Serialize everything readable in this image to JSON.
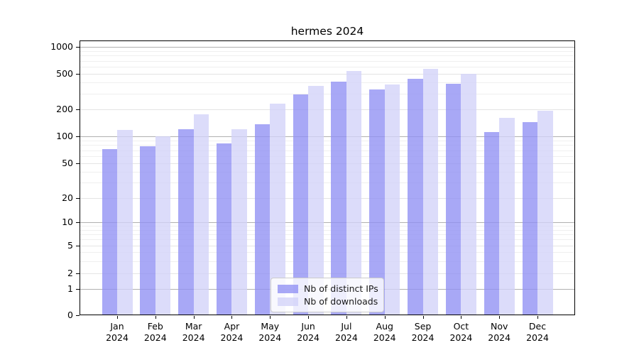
{
  "chart_data": {
    "type": "bar",
    "title": "hermes 2024",
    "categories": [
      "Jan",
      "Feb",
      "Mar",
      "Apr",
      "May",
      "Jun",
      "Jul",
      "Aug",
      "Sep",
      "Oct",
      "Nov",
      "Dec"
    ],
    "category_sublabel": "2024",
    "series": [
      {
        "name": "Nb of distinct IPs",
        "color": "#8f8ff4",
        "values": [
          72,
          78,
          120,
          83,
          136,
          295,
          405,
          333,
          440,
          388,
          112,
          145
        ]
      },
      {
        "name": "Nb of downloads",
        "color": "#d2d2f9",
        "values": [
          117,
          100,
          176,
          119,
          230,
          365,
          540,
          380,
          570,
          500,
          160,
          192
        ]
      }
    ],
    "xlabel": "",
    "ylabel": "",
    "yscale": "symlog",
    "yticks": [
      0,
      1,
      2,
      5,
      10,
      20,
      50,
      100,
      200,
      500,
      1000
    ],
    "minor_yticks": [
      3,
      4,
      6,
      7,
      8,
      9,
      30,
      40,
      60,
      70,
      80,
      90,
      300,
      400,
      600,
      700,
      800,
      900
    ],
    "ylim": [
      0,
      1180
    ],
    "grid": true,
    "legend_position": "lower center"
  }
}
